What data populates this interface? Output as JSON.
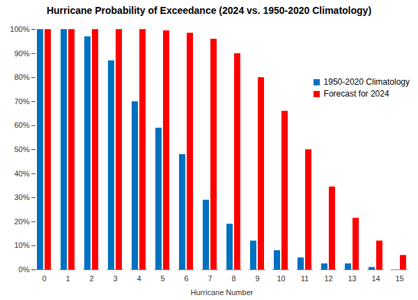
{
  "chart_data": {
    "type": "bar",
    "title": "Hurricane Probability of Exceedance (2024 vs. 1950-2020 Climatology)",
    "x_label": "Hurricane Number",
    "categories": [
      "0",
      "1",
      "2",
      "3",
      "4",
      "5",
      "6",
      "7",
      "8",
      "9",
      "10",
      "11",
      "12",
      "13",
      "14",
      "15"
    ],
    "series": [
      {
        "name": "1950-2020 Climatology",
        "color": "#0070c0",
        "values": [
          100,
          100,
          97,
          87,
          70,
          59,
          48,
          29,
          19,
          12,
          8,
          5,
          2.5,
          2.5,
          1,
          0
        ]
      },
      {
        "name": "Forecast for 2024",
        "color": "#ff0000",
        "values": [
          100,
          100,
          100,
          100,
          100,
          99.5,
          98.5,
          96,
          90,
          80,
          66,
          50,
          34.5,
          21.5,
          12,
          6
        ]
      }
    ],
    "ylim": [
      0,
      100
    ],
    "yticks": [
      {
        "value": 0,
        "label": "0%"
      },
      {
        "value": 10,
        "label": "10%"
      },
      {
        "value": 20,
        "label": "20%"
      },
      {
        "value": 30,
        "label": "30%"
      },
      {
        "value": 40,
        "label": "40%"
      },
      {
        "value": 50,
        "label": "50%"
      },
      {
        "value": 60,
        "label": "60%"
      },
      {
        "value": 70,
        "label": "70%"
      },
      {
        "value": 80,
        "label": "80%"
      },
      {
        "value": 90,
        "label": "90%"
      },
      {
        "value": 100,
        "label": "100%"
      }
    ],
    "grid": false,
    "legend": "upper right"
  }
}
